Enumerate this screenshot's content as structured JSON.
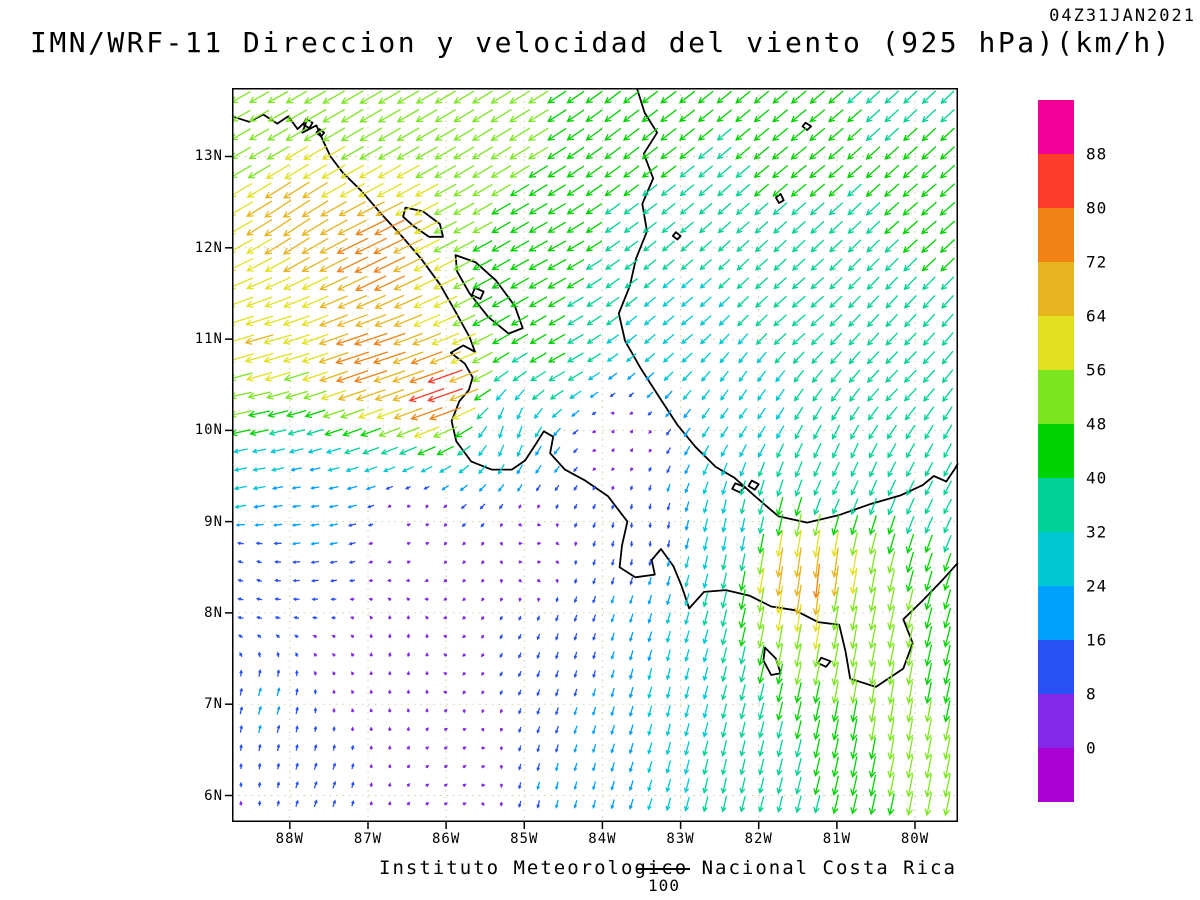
{
  "header": {
    "timestamp": "04Z31JAN2021",
    "title": "IMN/WRF-11 Direccion y velocidad del viento (925 hPa)(km/h)"
  },
  "footer": {
    "caption": "Instituto Meteorologico Nacional Costa Rica",
    "ref_label": "100"
  },
  "map": {
    "lon_min": -88.74,
    "lon_max": -79.45,
    "lat_min": 5.71,
    "lat_max": 13.75,
    "grid_color": "#cfcf9e",
    "lat_ticks": [
      {
        "label": "13N",
        "value": 13
      },
      {
        "label": "12N",
        "value": 12
      },
      {
        "label": "11N",
        "value": 11
      },
      {
        "label": "10N",
        "value": 10
      },
      {
        "label": "9N",
        "value": 9
      },
      {
        "label": "8N",
        "value": 8
      },
      {
        "label": "7N",
        "value": 7
      },
      {
        "label": "6N",
        "value": 6
      }
    ],
    "lon_ticks": [
      {
        "label": "88W",
        "value": -88
      },
      {
        "label": "87W",
        "value": -87
      },
      {
        "label": "86W",
        "value": -86
      },
      {
        "label": "85W",
        "value": -85
      },
      {
        "label": "84W",
        "value": -84
      },
      {
        "label": "83W",
        "value": -83
      },
      {
        "label": "82W",
        "value": -82
      },
      {
        "label": "81W",
        "value": -81
      },
      {
        "label": "80W",
        "value": -80
      }
    ],
    "coastlines": [
      [
        [
          -88.74,
          13.44
        ],
        [
          -88.52,
          13.38
        ],
        [
          -88.34,
          13.46
        ],
        [
          -88.16,
          13.36
        ],
        [
          -88.02,
          13.44
        ],
        [
          -87.9,
          13.3
        ],
        [
          -87.78,
          13.4
        ],
        [
          -87.84,
          13.26
        ],
        [
          -87.66,
          13.34
        ],
        [
          -87.58,
          13.18
        ],
        [
          -87.48,
          13.0
        ],
        [
          -87.32,
          12.82
        ],
        [
          -87.08,
          12.62
        ],
        [
          -86.84,
          12.38
        ],
        [
          -86.58,
          12.14
        ],
        [
          -86.32,
          11.88
        ],
        [
          -86.08,
          11.6
        ],
        [
          -85.88,
          11.3
        ],
        [
          -85.7,
          11.02
        ],
        [
          -85.63,
          10.86
        ],
        [
          -85.78,
          10.93
        ],
        [
          -85.94,
          10.85
        ],
        [
          -85.76,
          10.73
        ],
        [
          -85.66,
          10.58
        ],
        [
          -85.71,
          10.44
        ],
        [
          -85.83,
          10.32
        ],
        [
          -85.93,
          10.1
        ],
        [
          -85.87,
          9.88
        ],
        [
          -85.68,
          9.66
        ],
        [
          -85.42,
          9.57
        ],
        [
          -85.16,
          9.57
        ],
        [
          -84.99,
          9.67
        ],
        [
          -84.86,
          9.84
        ],
        [
          -84.75,
          9.99
        ],
        [
          -84.63,
          9.93
        ],
        [
          -84.67,
          9.75
        ],
        [
          -84.48,
          9.57
        ],
        [
          -84.22,
          9.45
        ],
        [
          -83.93,
          9.28
        ],
        [
          -83.68,
          9.0
        ],
        [
          -83.75,
          8.74
        ],
        [
          -83.78,
          8.5
        ],
        [
          -83.58,
          8.39
        ],
        [
          -83.33,
          8.42
        ],
        [
          -83.37,
          8.58
        ],
        [
          -83.25,
          8.7
        ],
        [
          -83.09,
          8.51
        ],
        [
          -82.99,
          8.3
        ],
        [
          -82.89,
          8.05
        ],
        [
          -82.7,
          8.23
        ],
        [
          -82.42,
          8.25
        ],
        [
          -82.12,
          8.19
        ],
        [
          -81.84,
          8.07
        ],
        [
          -81.54,
          8.03
        ],
        [
          -81.24,
          7.9
        ],
        [
          -80.97,
          7.87
        ],
        [
          -80.89,
          7.58
        ],
        [
          -80.83,
          7.28
        ],
        [
          -80.5,
          7.19
        ],
        [
          -80.15,
          7.39
        ],
        [
          -80.03,
          7.67
        ],
        [
          -80.15,
          7.93
        ],
        [
          -79.91,
          8.13
        ],
        [
          -79.64,
          8.37
        ],
        [
          -79.45,
          8.55
        ]
      ],
      [
        [
          -83.56,
          13.75
        ],
        [
          -83.46,
          13.48
        ],
        [
          -83.3,
          13.26
        ],
        [
          -83.47,
          13.03
        ],
        [
          -83.35,
          12.76
        ],
        [
          -83.49,
          12.48
        ],
        [
          -83.43,
          12.18
        ],
        [
          -83.57,
          11.88
        ],
        [
          -83.65,
          11.58
        ],
        [
          -83.79,
          11.28
        ],
        [
          -83.71,
          10.98
        ],
        [
          -83.51,
          10.68
        ],
        [
          -83.27,
          10.36
        ],
        [
          -83.04,
          10.06
        ],
        [
          -82.81,
          9.82
        ],
        [
          -82.55,
          9.6
        ],
        [
          -82.31,
          9.48
        ],
        [
          -82.05,
          9.28
        ],
        [
          -81.75,
          9.06
        ],
        [
          -81.38,
          8.99
        ],
        [
          -80.98,
          9.07
        ],
        [
          -80.58,
          9.19
        ],
        [
          -80.18,
          9.29
        ],
        [
          -79.9,
          9.4
        ],
        [
          -79.76,
          9.5
        ],
        [
          -79.6,
          9.44
        ],
        [
          -79.49,
          9.58
        ],
        [
          -79.45,
          9.64
        ]
      ]
    ],
    "lakes": [
      [
        [
          -86.52,
          12.44
        ],
        [
          -86.3,
          12.4
        ],
        [
          -86.08,
          12.26
        ],
        [
          -86.04,
          12.12
        ],
        [
          -86.22,
          12.12
        ],
        [
          -86.42,
          12.24
        ],
        [
          -86.55,
          12.34
        ]
      ],
      [
        [
          -85.88,
          11.92
        ],
        [
          -85.62,
          11.84
        ],
        [
          -85.36,
          11.64
        ],
        [
          -85.12,
          11.36
        ],
        [
          -85.02,
          11.12
        ],
        [
          -85.2,
          11.06
        ],
        [
          -85.46,
          11.24
        ],
        [
          -85.7,
          11.5
        ],
        [
          -85.86,
          11.74
        ]
      ],
      [
        [
          -85.63,
          11.56
        ],
        [
          -85.52,
          11.52
        ],
        [
          -85.56,
          11.44
        ],
        [
          -85.67,
          11.48
        ]
      ]
    ],
    "islands": [
      [
        [
          -87.79,
          13.41
        ],
        [
          -87.71,
          13.37
        ],
        [
          -87.75,
          13.31
        ],
        [
          -87.83,
          13.35
        ]
      ],
      [
        [
          -87.62,
          13.3
        ],
        [
          -87.56,
          13.26
        ],
        [
          -87.6,
          13.22
        ],
        [
          -87.66,
          13.26
        ]
      ],
      [
        [
          -81.4,
          13.37
        ],
        [
          -81.33,
          13.33
        ],
        [
          -81.38,
          13.29
        ],
        [
          -81.44,
          13.33
        ]
      ],
      [
        [
          -81.72,
          12.59
        ],
        [
          -81.68,
          12.52
        ],
        [
          -81.74,
          12.49
        ],
        [
          -81.78,
          12.55
        ]
      ],
      [
        [
          -83.06,
          12.17
        ],
        [
          -83.0,
          12.13
        ],
        [
          -83.04,
          12.09
        ],
        [
          -83.1,
          12.13
        ]
      ],
      [
        [
          -81.92,
          7.62
        ],
        [
          -81.78,
          7.5
        ],
        [
          -81.72,
          7.34
        ],
        [
          -81.84,
          7.32
        ],
        [
          -81.94,
          7.48
        ]
      ],
      [
        [
          -81.2,
          7.51
        ],
        [
          -81.08,
          7.47
        ],
        [
          -81.14,
          7.41
        ],
        [
          -81.24,
          7.45
        ]
      ],
      [
        [
          -82.3,
          9.42
        ],
        [
          -82.18,
          9.38
        ],
        [
          -82.24,
          9.32
        ],
        [
          -82.34,
          9.36
        ]
      ],
      [
        [
          -82.09,
          9.45
        ],
        [
          -82.0,
          9.41
        ],
        [
          -82.05,
          9.35
        ],
        [
          -82.13,
          9.39
        ]
      ]
    ]
  },
  "colorbar": {
    "labels_bottom_to_top": [
      "0",
      "8",
      "16",
      "24",
      "32",
      "40",
      "48",
      "56",
      "64",
      "72",
      "80",
      "88"
    ],
    "colors_bottom_to_top": [
      "#aa00d2",
      "#8228e6",
      "#2850f5",
      "#00a0ff",
      "#00c8d2",
      "#00d296",
      "#00d200",
      "#7de622",
      "#e1e122",
      "#e6b41e",
      "#f08214",
      "#fa3c28",
      "#f00096"
    ]
  },
  "wind": {
    "units": "km/h",
    "level": "925 hPa",
    "reference_speed": 100,
    "control_points": [
      [
        -88.5,
        13.4,
        -42,
        -24
      ],
      [
        -87.0,
        13.3,
        -48,
        -28
      ],
      [
        -85.2,
        13.3,
        -44,
        -27
      ],
      [
        -83.5,
        13.4,
        -34,
        -26
      ],
      [
        -81.5,
        13.0,
        -33,
        -27
      ],
      [
        -79.8,
        12.4,
        -32,
        -28
      ],
      [
        -88.0,
        12.3,
        -58,
        -38
      ],
      [
        -86.9,
        11.9,
        -70,
        -34
      ],
      [
        -84.8,
        11.8,
        -40,
        -22
      ],
      [
        -83.0,
        11.2,
        -24,
        -20
      ],
      [
        -81.5,
        11.3,
        -28,
        -24
      ],
      [
        -88.3,
        10.9,
        -62,
        -18
      ],
      [
        -87.0,
        10.8,
        -74,
        -24
      ],
      [
        -86.1,
        10.45,
        -78,
        -27
      ],
      [
        -84.6,
        10.8,
        -36,
        -20
      ],
      [
        -88.6,
        10.2,
        -48,
        -10
      ],
      [
        -88.5,
        9.6,
        -26,
        -5
      ],
      [
        -87.8,
        9.2,
        -16,
        -2
      ],
      [
        -85.2,
        10.0,
        -8,
        -26
      ],
      [
        -83.8,
        9.9,
        3,
        5
      ],
      [
        -82.2,
        10.4,
        -16,
        -22
      ],
      [
        -80.2,
        10.6,
        -26,
        -26
      ],
      [
        -79.7,
        9.6,
        -16,
        -30
      ],
      [
        -86.4,
        8.9,
        5,
        2
      ],
      [
        -84.9,
        8.7,
        7,
        1
      ],
      [
        -83.5,
        8.9,
        0,
        -10
      ],
      [
        -88.5,
        8.5,
        -10,
        3
      ],
      [
        -88.3,
        7.0,
        5,
        17
      ],
      [
        -87.6,
        6.1,
        5,
        14
      ],
      [
        -85.9,
        6.3,
        6,
        4
      ],
      [
        -84.6,
        6.1,
        -4,
        -16
      ],
      [
        -83.3,
        7.2,
        -6,
        -24
      ],
      [
        -82.3,
        8.9,
        -6,
        -30
      ],
      [
        -81.6,
        8.45,
        -10,
        -66
      ],
      [
        -81.2,
        8.35,
        -8,
        -74
      ],
      [
        -80.9,
        8.1,
        -10,
        -52
      ],
      [
        -80.3,
        6.9,
        -8,
        -48
      ],
      [
        -79.7,
        6.1,
        -10,
        -50
      ],
      [
        -82.4,
        6.3,
        -8,
        -34
      ],
      [
        -81.0,
        9.4,
        -14,
        -30
      ],
      [
        -84.2,
        7.5,
        -4,
        -14
      ],
      [
        -86.6,
        7.6,
        2,
        8
      ]
    ]
  }
}
